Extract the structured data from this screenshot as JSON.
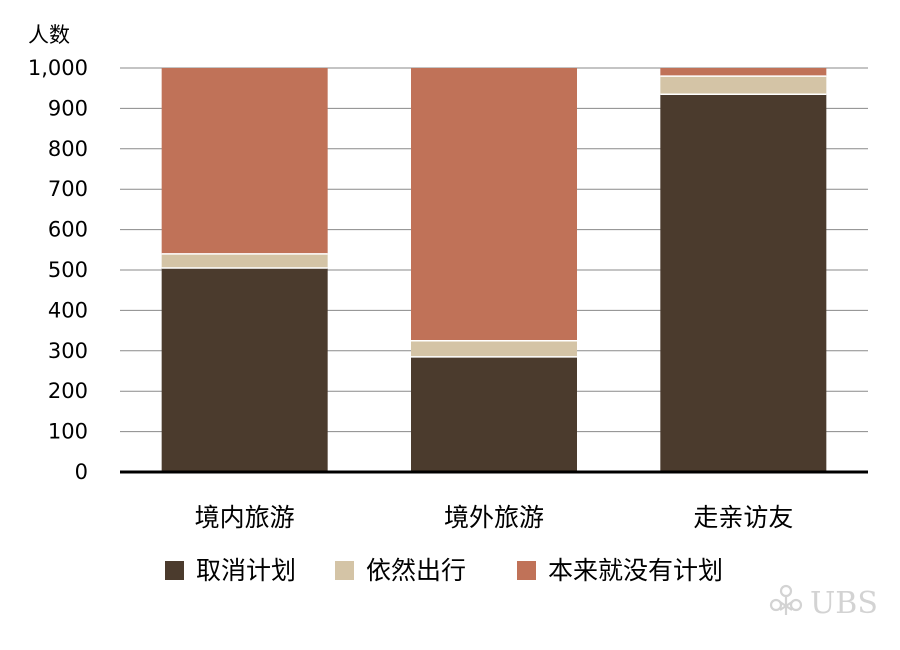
{
  "chart_data": {
    "type": "bar",
    "stacked": true,
    "ylabel": "人数",
    "ylim": [
      0,
      1000
    ],
    "yticks": [
      "0",
      "100",
      "200",
      "300",
      "400",
      "500",
      "600",
      "700",
      "800",
      "900",
      "1,000"
    ],
    "grid": true,
    "categories": [
      "境内旅游",
      "境外旅游",
      "走亲访友"
    ],
    "series": [
      {
        "name": "取消计划",
        "color": "#4b3b2d",
        "values": [
          505,
          285,
          935
        ]
      },
      {
        "name": "依然出行",
        "color": "#d4c4a6",
        "values": [
          35,
          40,
          45
        ]
      },
      {
        "name": "本来就没有计划",
        "color": "#c07258",
        "values": [
          460,
          675,
          20
        ]
      }
    ],
    "legend_position": "bottom"
  },
  "watermark": {
    "text": "UBS",
    "icon": "keys-logo-icon"
  }
}
